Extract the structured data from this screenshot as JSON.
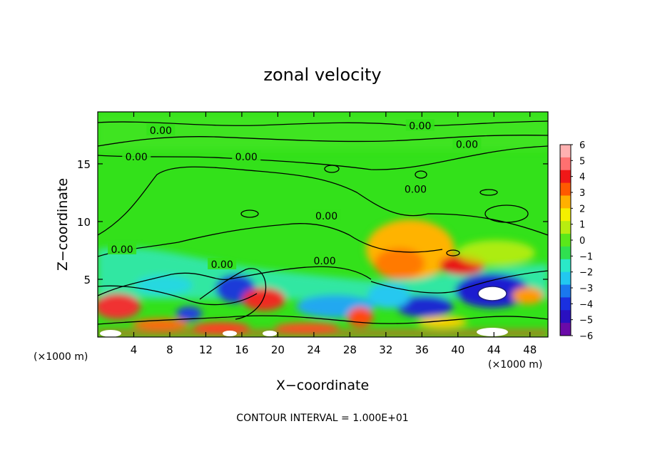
{
  "chart_data": {
    "type": "heatmap",
    "title": "zonal velocity",
    "xlabel": "X−coordinate",
    "ylabel": "Z−coordinate",
    "x_unit_left": "(×1000 m)",
    "x_unit_right": "(×1000 m)",
    "footer": "CONTOUR INTERVAL = 1.000E+01",
    "xlim": [
      0,
      50
    ],
    "ylim": [
      0,
      19.5
    ],
    "x_ticks": [
      4,
      8,
      12,
      16,
      20,
      24,
      28,
      32,
      36,
      40,
      44,
      48
    ],
    "y_ticks": [
      5,
      10,
      15
    ],
    "colorbar": {
      "ticks": [
        6,
        5,
        4,
        3,
        2,
        1,
        0,
        -1,
        -2,
        -3,
        -4,
        -5,
        -6
      ],
      "tick_labels": [
        "6",
        "5",
        "4",
        "3",
        "2",
        "1",
        "0",
        "−1",
        "−2",
        "−3",
        "−4",
        "−5",
        "−6"
      ],
      "range": [
        -6,
        6
      ]
    },
    "contour_labels": [
      {
        "text": "0.00",
        "x": 7.0,
        "y": 17.9
      },
      {
        "text": "0.00",
        "x": 4.3,
        "y": 15.6
      },
      {
        "text": "0.00",
        "x": 16.5,
        "y": 15.6
      },
      {
        "text": "0.00",
        "x": 35.8,
        "y": 18.3
      },
      {
        "text": "0.00",
        "x": 41.0,
        "y": 16.7
      },
      {
        "text": "0.00",
        "x": 35.3,
        "y": 12.8
      },
      {
        "text": "0.00",
        "x": 25.4,
        "y": 10.5
      },
      {
        "text": "0.00",
        "x": 2.7,
        "y": 7.6
      },
      {
        "text": "0.00",
        "x": 13.8,
        "y": 6.3
      },
      {
        "text": "0.00",
        "x": 25.2,
        "y": 6.6
      }
    ]
  }
}
